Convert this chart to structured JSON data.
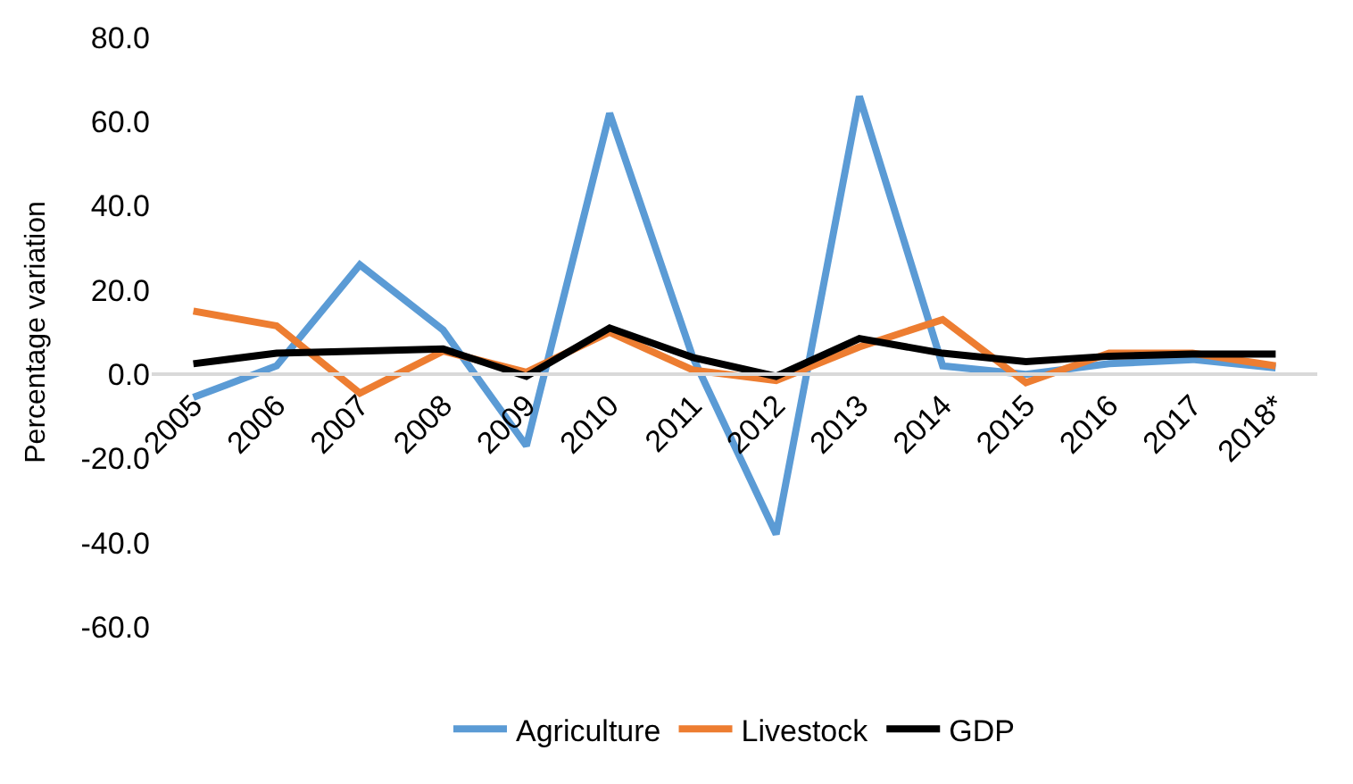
{
  "chart_data": {
    "type": "line",
    "ylabel": "Percentage variation",
    "categories": [
      "2005",
      "2006",
      "2007",
      "2008",
      "2009",
      "2010",
      "2011",
      "2012",
      "2013",
      "2014",
      "2015",
      "2016",
      "2017",
      "2018*"
    ],
    "series": [
      {
        "name": "Agriculture",
        "color": "#5b9bd5",
        "values": [
          -5.5,
          2,
          26,
          10.5,
          -17,
          62,
          4,
          -38,
          66,
          2,
          0,
          2.5,
          3.5,
          1.5
        ]
      },
      {
        "name": "Livestock",
        "color": "#ed7d31",
        "values": [
          15,
          11.5,
          -4.5,
          5.5,
          0.5,
          10,
          1,
          -1.5,
          6.5,
          13,
          -2,
          5,
          5,
          2
        ]
      },
      {
        "name": "GDP",
        "color": "#000000",
        "values": [
          2.5,
          5,
          5.5,
          6,
          -0.5,
          11,
          4,
          -0.5,
          8.5,
          5,
          3,
          4.3,
          4.8,
          4.8
        ]
      }
    ],
    "ylim": [
      -60,
      80
    ],
    "yticks": [
      {
        "value": -60,
        "label": "-60.0"
      },
      {
        "value": -40,
        "label": "-40.0"
      },
      {
        "value": -20,
        "label": "-20.0"
      },
      {
        "value": 0,
        "label": "0.0"
      },
      {
        "value": 20,
        "label": "20.0"
      },
      {
        "value": 40,
        "label": "40.0"
      },
      {
        "value": 60,
        "label": "60.0"
      },
      {
        "value": 80,
        "label": "80.0"
      }
    ],
    "legend": "bottom",
    "marker": "none",
    "line_style": "solid"
  }
}
